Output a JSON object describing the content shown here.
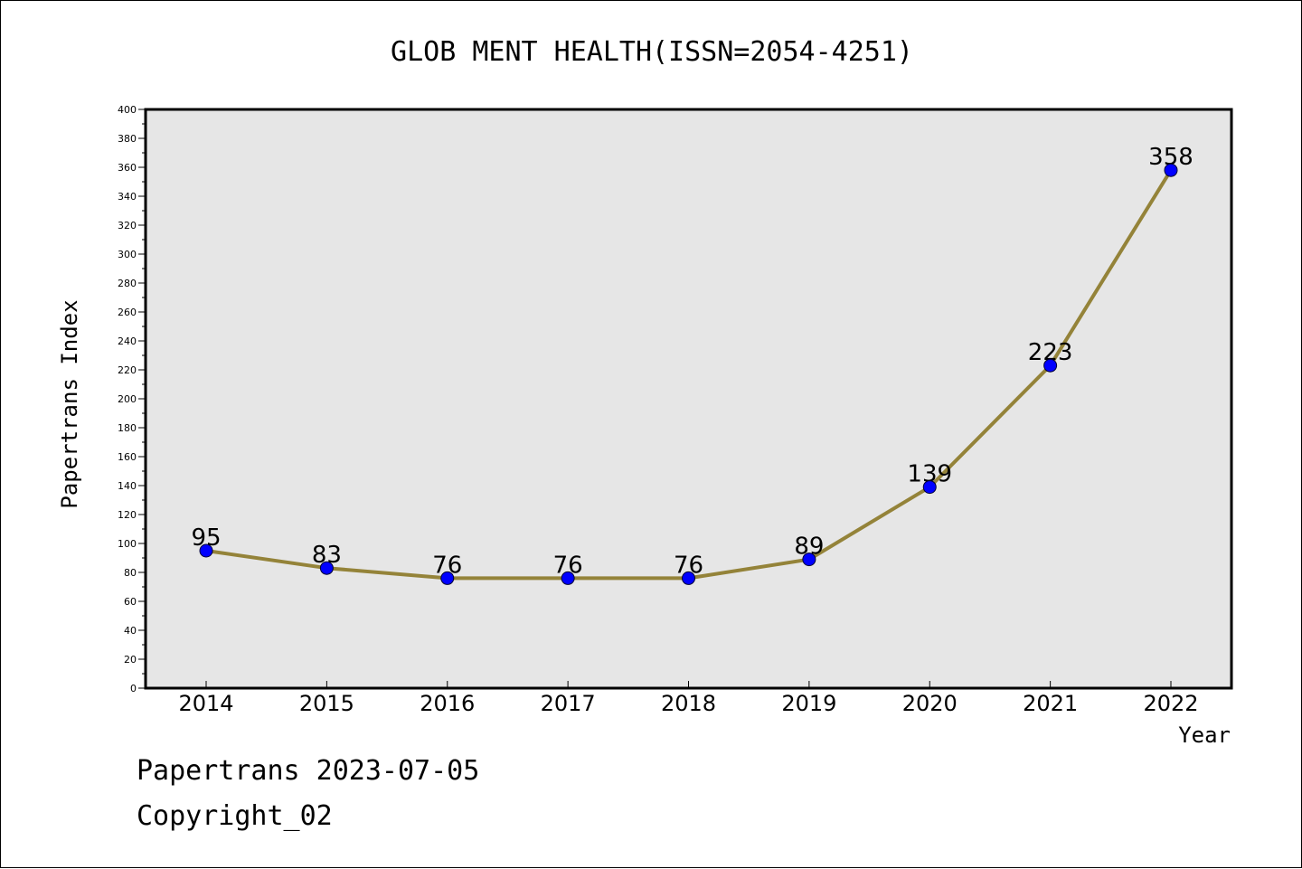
{
  "chart_data": {
    "type": "line",
    "title": "GLOB MENT HEALTH(ISSN=2054-4251)",
    "xlabel": "Year",
    "ylabel": "Papertrans Index",
    "x": [
      "2014",
      "2015",
      "2016",
      "2017",
      "2018",
      "2019",
      "2020",
      "2021",
      "2022"
    ],
    "series": [
      {
        "values": [
          95,
          83,
          76,
          76,
          76,
          89,
          139,
          223,
          358
        ],
        "labels": [
          "95",
          "83",
          "76",
          "76",
          "76",
          "89",
          "139",
          "223",
          "358"
        ]
      }
    ],
    "ylim": [
      0,
      400
    ],
    "yticks": [
      "0",
      "20",
      "40",
      "60",
      "80",
      "100",
      "120",
      "140",
      "160",
      "180",
      "200",
      "220",
      "240",
      "260",
      "280",
      "300",
      "320",
      "340",
      "360",
      "380",
      "400"
    ],
    "grid": false,
    "line_color": "#948339",
    "marker_color": "#0000ff",
    "plot_background": "#e6e6e6"
  },
  "footer": {
    "line1": "Papertrans 2023-07-05",
    "line2": "Copyright_02"
  }
}
